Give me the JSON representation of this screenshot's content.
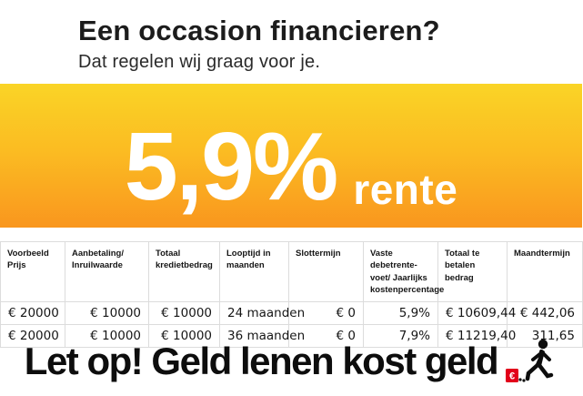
{
  "header": {
    "title": "Een occasion financieren?",
    "subtitle": "Dat regelen wij graag voor je."
  },
  "banner": {
    "rate": "5,9%",
    "rate_suffix": "rente",
    "gradient_top": "#fad426",
    "gradient_bottom": "#f9961e",
    "text_color": "#ffffff"
  },
  "table": {
    "columns": [
      "Voorbeeld Prijs",
      "Aanbetaling/ Inruilwaarde",
      "Totaal kredietbedrag",
      "Looptijd in maanden",
      "Slottermijn",
      "Vaste debetrente-voet/ Jaarlijks kostenpercentage",
      "Totaal te betalen bedrag",
      "Maandtermijn"
    ],
    "rows": [
      [
        "€ 20000",
        "€ 10000",
        "€ 10000",
        "24 maanden",
        "€ 0",
        "5,9%",
        "€ 10609,44",
        "€ 442,06"
      ],
      [
        "€ 20000",
        "€ 10000",
        "€ 10000",
        "36 maanden",
        "€ 0",
        "7,9%",
        "€ 11219,40",
        "311,65"
      ]
    ]
  },
  "warning": {
    "text": "Let op! Geld lenen kost geld",
    "euro_symbol": "€",
    "icon": "euro-ball-and-chain-walking-person-icon",
    "accent_red": "#e2001a"
  }
}
